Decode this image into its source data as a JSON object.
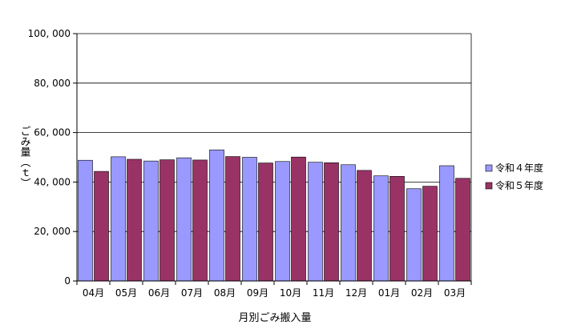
{
  "chart_data": {
    "type": "bar",
    "title": "",
    "xlabel": "月別ごみ搬入量",
    "ylabel": "ごみ量（ｔ）",
    "ylim": [
      0,
      100000
    ],
    "yticks": [
      0,
      20000,
      40000,
      60000,
      80000,
      100000
    ],
    "ytick_labels": [
      "0",
      "20, 000",
      "40, 000",
      "60, 000",
      "80, 000",
      "100, 000"
    ],
    "grid": true,
    "legend_position": "right",
    "categories": [
      "04月",
      "05月",
      "06月",
      "07月",
      "08月",
      "09月",
      "10月",
      "11月",
      "12月",
      "01月",
      "02月",
      "03月"
    ],
    "series": [
      {
        "name": "令和４年度",
        "color": "#9999ff",
        "values": [
          48800,
          50200,
          48500,
          49800,
          53000,
          50000,
          48300,
          48000,
          47000,
          42500,
          37300,
          46600
        ]
      },
      {
        "name": "令和５年度",
        "color": "#993366",
        "values": [
          44300,
          49200,
          49000,
          48900,
          50300,
          47700,
          50100,
          47800,
          44700,
          42300,
          38300,
          41500
        ]
      }
    ]
  }
}
